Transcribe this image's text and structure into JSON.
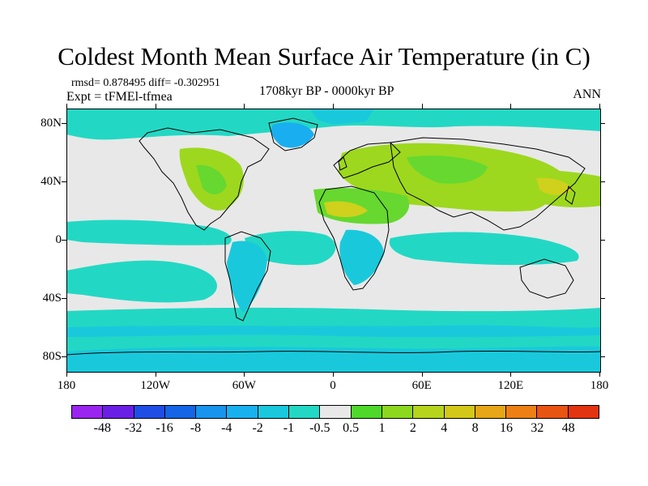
{
  "title": "Coldest Month Mean Surface Air Temperature (in C)",
  "stats": "rmsd= 0.878495 diff= -0.302951",
  "experiment": "Expt = tFMEl-tfmea",
  "period": "1708kyr BP - 0000kyr BP",
  "season": "ANN",
  "map": {
    "projection": "cylindrical-equidistant",
    "lon_range": [
      -180,
      180
    ],
    "lat_range": [
      -90,
      90
    ],
    "y_ticks": [
      {
        "label": "80N",
        "lat": 80
      },
      {
        "label": "40N",
        "lat": 40
      },
      {
        "label": "0",
        "lat": 0
      },
      {
        "label": "40S",
        "lat": -40
      },
      {
        "label": "80S",
        "lat": -80
      }
    ],
    "x_ticks": [
      {
        "label": "180",
        "lon": -180
      },
      {
        "label": "120W",
        "lon": -120
      },
      {
        "label": "60W",
        "lon": -60
      },
      {
        "label": "0",
        "lon": 0
      },
      {
        "label": "60E",
        "lon": 60
      },
      {
        "label": "120E",
        "lon": 120
      },
      {
        "label": "180",
        "lon": 180
      }
    ],
    "colors": {
      "background_near_zero": "#e8e8e8",
      "cool_light": "#22d8c4",
      "cool_mid": "#19c9db",
      "cool_deep": "#19aef0",
      "warm_light": "#9dd81e",
      "warm_mid": "#66d82f",
      "warm_high": "#cfd11c",
      "coast": "#000000"
    }
  },
  "colorbar": {
    "colors": [
      "#9b25f0",
      "#6a1fe6",
      "#1f4de6",
      "#1565e6",
      "#1894ee",
      "#19b0f0",
      "#19c8dc",
      "#22d8c4",
      "#e8e8e8",
      "#4ed82a",
      "#8cd81f",
      "#b6d41c",
      "#d3c818",
      "#e6a616",
      "#ec8014",
      "#e85412",
      "#e23410"
    ],
    "labels": [
      "-48",
      "-32",
      "-16",
      "-8",
      "-4",
      "-2",
      "-1",
      "-0.5",
      "0.5",
      "1",
      "2",
      "4",
      "8",
      "16",
      "32",
      "48"
    ]
  }
}
